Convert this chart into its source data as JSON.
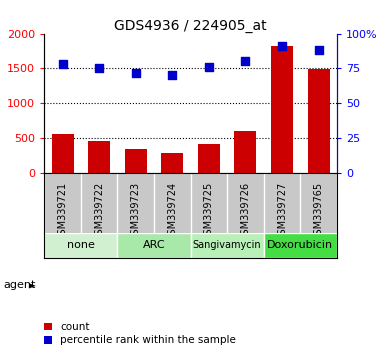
{
  "title": "GDS4936 / 224905_at",
  "samples": [
    "GSM339721",
    "GSM339722",
    "GSM339723",
    "GSM339724",
    "GSM339725",
    "GSM339726",
    "GSM339727",
    "GSM339765"
  ],
  "counts": [
    560,
    460,
    340,
    290,
    420,
    600,
    1820,
    1490
  ],
  "percentile_ranks": [
    78,
    75,
    72,
    70,
    76,
    80,
    91,
    88
  ],
  "agents": [
    {
      "label": "none",
      "start": 0,
      "end": 2,
      "color": "#d0f0d0"
    },
    {
      "label": "ARC",
      "start": 2,
      "end": 4,
      "color": "#a8e8a8"
    },
    {
      "label": "Sangivamycin",
      "start": 4,
      "end": 6,
      "color": "#b8f0b8"
    },
    {
      "label": "Doxorubicin",
      "start": 6,
      "end": 8,
      "color": "#44dd44"
    }
  ],
  "ylim_left": [
    0,
    2000
  ],
  "ylim_right": [
    0,
    100
  ],
  "yticks_left": [
    0,
    500,
    1000,
    1500,
    2000
  ],
  "yticks_right": [
    0,
    25,
    50,
    75,
    100
  ],
  "ytick_labels_left": [
    "0",
    "500",
    "1000",
    "1500",
    "2000"
  ],
  "ytick_labels_right": [
    "0",
    "25",
    "50",
    "75",
    "100%"
  ],
  "bar_color": "#cc0000",
  "dot_color": "#0000cc",
  "grid_yticks": [
    500,
    1000,
    1500
  ],
  "sample_bg_color": "#c8c8c8",
  "legend_count_color": "#cc0000",
  "legend_dot_color": "#0000cc",
  "agent_label_fontsize": 8,
  "sangivamycin_fontsize": 7
}
